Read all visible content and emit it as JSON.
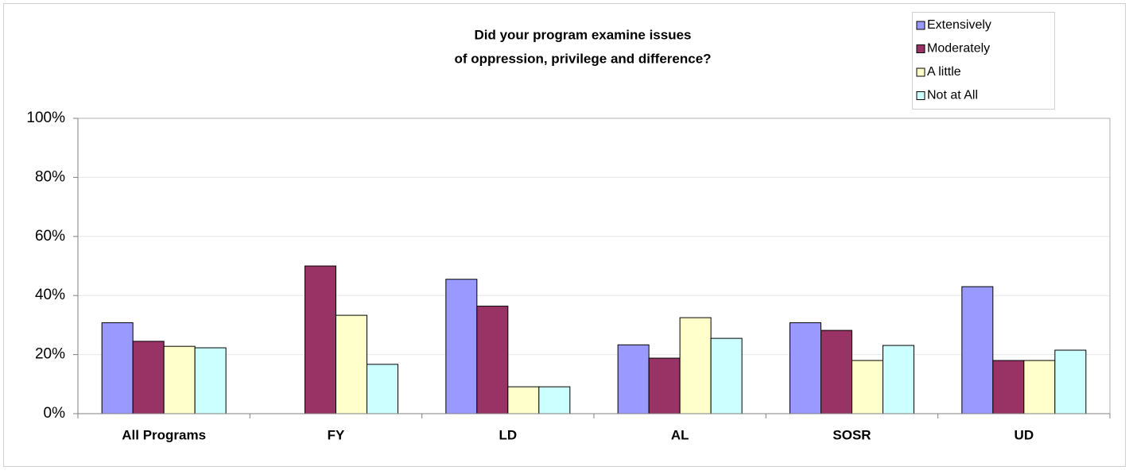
{
  "chart_data": {
    "type": "bar",
    "title": [
      "Did your program examine issues",
      "of oppression, privilege and difference?"
    ],
    "categories": [
      "All Programs",
      "FY",
      "LD",
      "AL",
      "SOSR",
      "UD"
    ],
    "series": [
      {
        "name": "Extensively",
        "color": "#9999ff",
        "values": [
          30.8,
          0,
          45.5,
          23.3,
          30.8,
          43
        ]
      },
      {
        "name": "Moderately",
        "color": "#993366",
        "values": [
          24.5,
          50,
          36.4,
          18.8,
          28.2,
          18
        ]
      },
      {
        "name": "A little",
        "color": "#ffffcc",
        "values": [
          22.8,
          33.3,
          9.1,
          32.5,
          18,
          18
        ]
      },
      {
        "name": "Not at All",
        "color": "#ccffff",
        "values": [
          22.3,
          16.7,
          9.1,
          25.5,
          23.1,
          21.5
        ]
      }
    ],
    "ylim": [
      0,
      100
    ],
    "yticks": [
      {
        "value": 0,
        "label": "0%"
      },
      {
        "value": 20,
        "label": "20%"
      },
      {
        "value": 40,
        "label": "40%"
      },
      {
        "value": 60,
        "label": "60%"
      },
      {
        "value": 80,
        "label": "80%"
      },
      {
        "value": 100,
        "label": "100%"
      }
    ],
    "grid": true,
    "legend": "top-right"
  }
}
